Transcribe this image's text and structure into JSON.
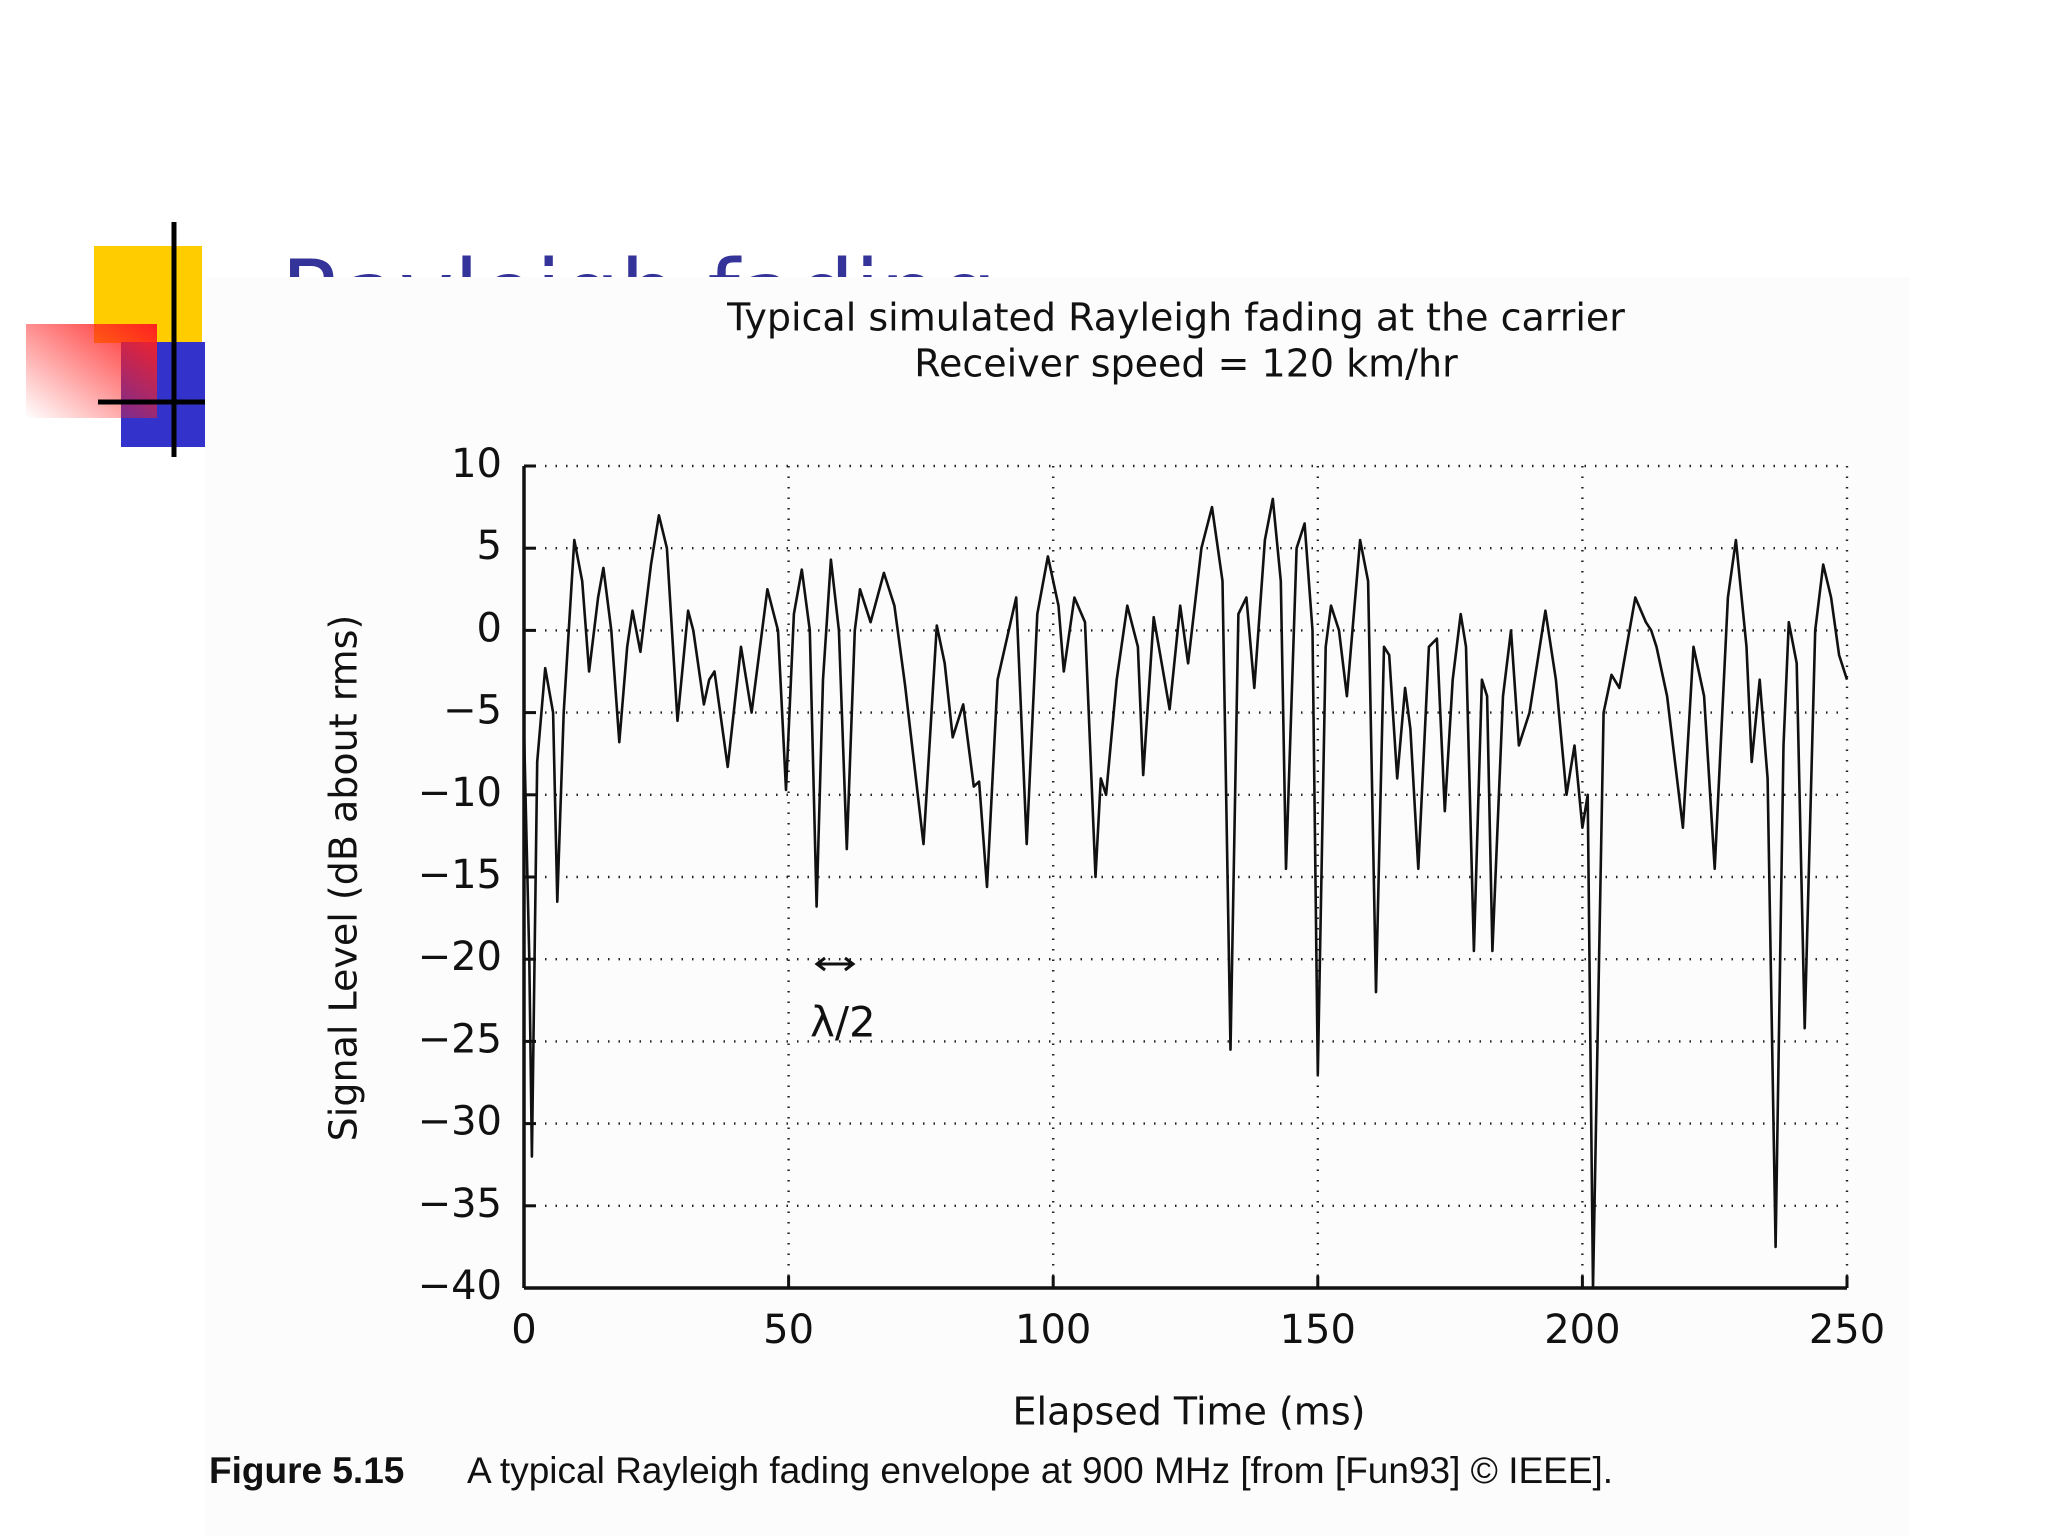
{
  "slide_title": "Rayleigh fading",
  "caption": {
    "label": "Figure 5.15",
    "text": "A typical Rayleigh fading envelope at 900 MHz [from [Fun93] © IEEE]."
  },
  "chart_data": {
    "type": "line",
    "title": [
      "Typical simulated Rayleigh fading at the carrier",
      "Receiver speed = 120 km/hr"
    ],
    "x_label": "Elapsed Time (ms)",
    "y_label": "Signal Level (dB about rms)",
    "annotations": [
      "λ/2"
    ],
    "grid": true,
    "xlim": [
      0,
      250
    ],
    "xticks": [
      0,
      50,
      100,
      150,
      200,
      250
    ],
    "ylim": [
      -40,
      10
    ],
    "yticks": [
      10,
      5,
      0,
      {
        "value": -5,
        "label": "−5"
      },
      {
        "value": -10,
        "label": "−10"
      },
      {
        "value": -15,
        "label": "−15"
      },
      {
        "value": -20,
        "label": "−20"
      },
      {
        "value": -25,
        "label": "−25"
      },
      {
        "value": -30,
        "label": "−30"
      },
      {
        "value": -35,
        "label": "−35"
      },
      {
        "value": -40,
        "label": "−40"
      }
    ],
    "x": [
      0,
      1,
      1.5,
      2.5,
      4,
      5.5,
      6.3,
      7.5,
      9.5,
      11,
      12.3,
      14,
      15,
      16.5,
      18,
      19.5,
      20.5,
      22,
      24,
      25.5,
      27,
      29,
      31,
      32,
      34,
      35,
      36,
      38.5,
      41,
      43,
      46,
      48,
      49.5,
      51,
      52.5,
      54,
      55.3,
      56.5,
      58,
      59.5,
      61,
      62.5,
      63.5,
      65.5,
      68,
      70,
      72,
      75.5,
      78,
      79.5,
      81,
      83,
      85,
      86,
      87.5,
      89.5,
      93,
      95,
      97,
      99,
      101,
      102,
      104,
      106,
      108,
      109,
      110,
      112,
      114,
      116,
      117,
      119,
      120.5,
      122,
      124,
      125.5,
      128,
      130,
      132,
      133.5,
      135,
      136.5,
      138,
      140,
      141.5,
      143,
      144,
      146,
      147.5,
      149,
      150,
      151.5,
      152.5,
      154,
      155.5,
      158,
      159.5,
      161,
      162.5,
      163.5,
      165,
      166.5,
      167.5,
      169,
      171,
      172.5,
      174,
      175.5,
      177,
      178,
      179.5,
      181,
      182,
      183,
      185,
      186.5,
      188,
      190,
      193,
      195,
      197,
      198.5,
      200,
      201,
      202,
      204,
      205.5,
      207,
      210,
      212,
      213,
      214,
      216,
      219,
      221,
      223,
      225,
      227.5,
      229,
      231,
      232,
      233.5,
      235,
      236.5,
      238,
      239,
      240.5,
      242,
      244,
      245.5,
      247,
      248.5,
      250
    ],
    "series": [
      {
        "color": "#111111",
        "values": [
          -6,
          -20,
          -32,
          -8,
          -2.3,
          -5,
          -16.5,
          -5,
          5.5,
          3,
          -2.5,
          2,
          3.8,
          0,
          -6.8,
          -1,
          1.2,
          -1.3,
          4,
          7,
          5,
          -5.5,
          1.2,
          0,
          -4.5,
          -3,
          -2.5,
          -8.3,
          -1,
          -5,
          2.5,
          0,
          -9.7,
          1,
          3.7,
          0,
          -16.8,
          -3,
          4.3,
          0,
          -13.3,
          0,
          2.5,
          0.5,
          3.5,
          1.5,
          -3.3,
          -13,
          0.3,
          -2,
          -6.5,
          -4.5,
          -9.5,
          -9.2,
          -15.6,
          -3,
          2,
          -13,
          1,
          4.5,
          1.5,
          -2.5,
          2,
          0.5,
          -15,
          -9,
          -10,
          -3,
          1.5,
          -1,
          -8.8,
          0.8,
          -2,
          -4.8,
          1.5,
          -2,
          5,
          7.5,
          3,
          -25.5,
          1,
          2,
          -3.5,
          5.5,
          8,
          3,
          -14.5,
          5,
          6.5,
          0,
          -27,
          -1,
          1.5,
          0,
          -4,
          5.5,
          3,
          -22,
          -1,
          -1.5,
          -9,
          -3.5,
          -6,
          -14.5,
          -1,
          -0.5,
          -11,
          -3,
          1,
          -1,
          -19.5,
          -3,
          -4,
          -19.5,
          -4,
          0,
          -7,
          -5,
          1.2,
          -3,
          -10,
          -7,
          -12,
          -10,
          -40,
          -5,
          -2.7,
          -3.5,
          2,
          0.5,
          0,
          -1,
          -4,
          -12,
          -1,
          -4,
          -14.5,
          2,
          5.5,
          -1,
          -8,
          -3,
          -9,
          -37.5,
          -7,
          0.5,
          -2,
          -24.2,
          0,
          4,
          2,
          -1.5,
          -3
        ]
      }
    ]
  }
}
